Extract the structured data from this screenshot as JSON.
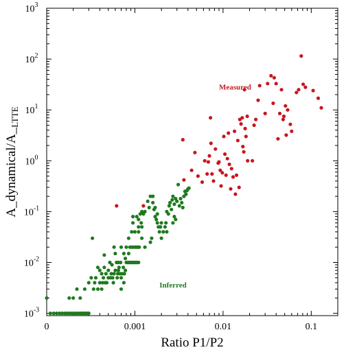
{
  "chart_data": {
    "type": "scatter",
    "title": "",
    "xlabel": "Ratio P1/P2",
    "ylabel": "A_dynamical/A_LTTE",
    "ylabel_main": "A_dynamical/A_",
    "ylabel_sub": "LTTE",
    "x_scale": "log",
    "y_scale": "log",
    "xlim": [
      0.0001,
      0.2
    ],
    "ylim": [
      0.0009,
      1000
    ],
    "x_ticks": [
      {
        "value": 0.0001,
        "label": "0"
      },
      {
        "value": 0.001,
        "label": "0.001"
      },
      {
        "value": 0.01,
        "label": "0.01"
      },
      {
        "value": 0.1,
        "label": "0.1"
      }
    ],
    "y_ticks": [
      {
        "value": 0.001,
        "base": "10",
        "exp": "-3"
      },
      {
        "value": 0.01,
        "base": "10",
        "exp": "-2"
      },
      {
        "value": 0.1,
        "base": "10",
        "exp": "-1"
      },
      {
        "value": 1,
        "base": "10",
        "exp": "0"
      },
      {
        "value": 10,
        "base": "10",
        "exp": "1"
      },
      {
        "value": 100,
        "base": "10",
        "exp": "2"
      },
      {
        "value": 1000,
        "base": "10",
        "exp": "3"
      }
    ],
    "grid": false,
    "annotations": [
      {
        "text": "Measured",
        "x": 0.009,
        "y": 25,
        "color": "#c8161e"
      },
      {
        "text": "Inferred",
        "x": 0.0019,
        "y": 0.0032,
        "color": "#1f7a1f"
      }
    ],
    "series": [
      {
        "color": "#c8161e",
        "points": [
          [
            0.00062,
            0.13
          ],
          [
            0.00125,
            0.13
          ],
          [
            0.0035,
            2.6
          ],
          [
            0.0036,
            0.42
          ],
          [
            0.0044,
            0.65
          ],
          [
            0.0048,
            1.45
          ],
          [
            0.0052,
            0.5
          ],
          [
            0.0058,
            0.38
          ],
          [
            0.0062,
            1.0
          ],
          [
            0.0066,
            0.55
          ],
          [
            0.0068,
            0.95
          ],
          [
            0.007,
            1.25
          ],
          [
            0.0072,
            7.0
          ],
          [
            0.0073,
            2.2
          ],
          [
            0.0075,
            0.55
          ],
          [
            0.0078,
            0.4
          ],
          [
            0.0082,
            1.7
          ],
          [
            0.0088,
            0.9
          ],
          [
            0.009,
            0.95
          ],
          [
            0.0093,
            0.65
          ],
          [
            0.0095,
            0.32
          ],
          [
            0.0098,
            0.58
          ],
          [
            0.0102,
            3.0
          ],
          [
            0.0105,
            1.35
          ],
          [
            0.0108,
            0.52
          ],
          [
            0.0112,
            1.1
          ],
          [
            0.0115,
            3.5
          ],
          [
            0.0118,
            0.85
          ],
          [
            0.0122,
            0.28
          ],
          [
            0.0125,
            0.7
          ],
          [
            0.013,
            0.48
          ],
          [
            0.0135,
            3.8
          ],
          [
            0.0138,
            0.22
          ],
          [
            0.0142,
            0.52
          ],
          [
            0.0147,
            2.5
          ],
          [
            0.0152,
            0.3
          ],
          [
            0.0155,
            6.5
          ],
          [
            0.016,
            5.3
          ],
          [
            0.0165,
            7.0
          ],
          [
            0.0168,
            1.9
          ],
          [
            0.0172,
            1.5
          ],
          [
            0.0175,
            25
          ],
          [
            0.0178,
            4.3
          ],
          [
            0.0182,
            3.0
          ],
          [
            0.0188,
            7.5
          ],
          [
            0.019,
            1.0
          ],
          [
            0.0215,
            1.0
          ],
          [
            0.0225,
            5.0
          ],
          [
            0.0235,
            6.5
          ],
          [
            0.025,
            15.5
          ],
          [
            0.026,
            30
          ],
          [
            0.03,
            8.5
          ],
          [
            0.032,
            33
          ],
          [
            0.035,
            47
          ],
          [
            0.037,
            13.5
          ],
          [
            0.038,
            43
          ],
          [
            0.04,
            33
          ],
          [
            0.042,
            2.7
          ],
          [
            0.044,
            8.5
          ],
          [
            0.046,
            25
          ],
          [
            0.048,
            6.5
          ],
          [
            0.049,
            7.5
          ],
          [
            0.051,
            12
          ],
          [
            0.052,
            3.2
          ],
          [
            0.054,
            10
          ],
          [
            0.058,
            5.2
          ],
          [
            0.06,
            3.8
          ],
          [
            0.068,
            22
          ],
          [
            0.072,
            25
          ],
          [
            0.077,
            115
          ],
          [
            0.081,
            32
          ],
          [
            0.086,
            28
          ],
          [
            0.105,
            24
          ],
          [
            0.12,
            17
          ],
          [
            0.13,
            11
          ]
        ]
      },
      {
        "color": "#1f7a1f",
        "points": [
          [
            0.0001,
            0.002
          ],
          [
            0.00011,
            0.001
          ],
          [
            0.00012,
            0.001
          ],
          [
            0.00013,
            0.001
          ],
          [
            0.00014,
            0.001
          ],
          [
            0.00015,
            0.001
          ],
          [
            0.00016,
            0.001
          ],
          [
            0.00017,
            0.001
          ],
          [
            0.00018,
            0.001
          ],
          [
            0.00019,
            0.001
          ],
          [
            0.0002,
            0.001
          ],
          [
            0.00021,
            0.001
          ],
          [
            0.00022,
            0.001
          ],
          [
            0.00023,
            0.001
          ],
          [
            0.00024,
            0.001
          ],
          [
            0.00025,
            0.001
          ],
          [
            0.00026,
            0.001
          ],
          [
            0.00027,
            0.001
          ],
          [
            0.00028,
            0.001
          ],
          [
            0.00029,
            0.001
          ],
          [
            0.0003,
            0.001
          ],
          [
            0.00018,
            0.002
          ],
          [
            0.0002,
            0.002
          ],
          [
            0.00022,
            0.003
          ],
          [
            0.00024,
            0.002
          ],
          [
            0.00027,
            0.003
          ],
          [
            0.0003,
            0.004
          ],
          [
            0.00032,
            0.005
          ],
          [
            0.00033,
            0.03
          ],
          [
            0.00034,
            0.003
          ],
          [
            0.00035,
            0.004
          ],
          [
            0.00036,
            0.005
          ],
          [
            0.00038,
            0.003
          ],
          [
            0.0004,
            0.004
          ],
          [
            0.00042,
            0.003
          ],
          [
            0.00043,
            0.004
          ],
          [
            0.00044,
            0.005
          ],
          [
            0.00045,
            0.014
          ],
          [
            0.00046,
            0.004
          ],
          [
            0.00047,
            0.006
          ],
          [
            0.00048,
            0.004
          ],
          [
            0.0005,
            0.005
          ],
          [
            0.00052,
            0.01
          ],
          [
            0.00053,
            0.005
          ],
          [
            0.00054,
            0.006
          ],
          [
            0.00055,
            0.009
          ],
          [
            0.00056,
            0.005
          ],
          [
            0.00057,
            0.004
          ],
          [
            0.00058,
            0.006
          ],
          [
            0.0006,
            0.007
          ],
          [
            0.00062,
            0.01
          ],
          [
            0.00063,
            0.005
          ],
          [
            0.00064,
            0.006
          ],
          [
            0.00065,
            0.007
          ],
          [
            0.00066,
            0.008
          ],
          [
            0.00068,
            0.006
          ],
          [
            0.00069,
            0.01
          ],
          [
            0.0007,
            0.005
          ],
          [
            0.00072,
            0.006
          ],
          [
            0.00074,
            0.008
          ],
          [
            0.00075,
            0.004
          ],
          [
            0.00076,
            0.006
          ],
          [
            0.00078,
            0.007
          ],
          [
            0.00078,
            0.012
          ],
          [
            0.0008,
            0.01
          ],
          [
            0.00082,
            0.01
          ],
          [
            0.00084,
            0.01
          ],
          [
            0.00086,
            0.01
          ],
          [
            0.00088,
            0.01
          ],
          [
            0.0009,
            0.01
          ],
          [
            0.00092,
            0.01
          ],
          [
            0.00094,
            0.01
          ],
          [
            0.00096,
            0.01
          ],
          [
            0.00098,
            0.01
          ],
          [
            0.001,
            0.01
          ],
          [
            0.00102,
            0.01
          ],
          [
            0.00104,
            0.01
          ],
          [
            0.00106,
            0.01
          ],
          [
            0.00108,
            0.01
          ],
          [
            0.0011,
            0.01
          ],
          [
            0.00085,
            0.015
          ],
          [
            0.00088,
            0.02
          ],
          [
            0.00092,
            0.02
          ],
          [
            0.00096,
            0.02
          ],
          [
            0.001,
            0.02
          ],
          [
            0.00103,
            0.02
          ],
          [
            0.00106,
            0.02
          ],
          [
            0.00109,
            0.02
          ],
          [
            0.00112,
            0.02
          ],
          [
            0.00092,
            0.04
          ],
          [
            0.001,
            0.04
          ],
          [
            0.0011,
            0.04
          ],
          [
            0.0012,
            0.05
          ],
          [
            0.00118,
            0.06
          ],
          [
            0.00095,
            0.06
          ],
          [
            0.00105,
            0.08
          ],
          [
            0.0011,
            0.07
          ],
          [
            0.00115,
            0.09
          ],
          [
            0.0012,
            0.1
          ],
          [
            0.00125,
            0.09
          ],
          [
            0.0013,
            0.1
          ],
          [
            0.0014,
            0.16
          ],
          [
            0.00145,
            0.12
          ],
          [
            0.0015,
            0.2
          ],
          [
            0.0016,
            0.15
          ],
          [
            0.00165,
            0.11
          ],
          [
            0.0017,
            0.08
          ],
          [
            0.00175,
            0.07
          ],
          [
            0.0018,
            0.06
          ],
          [
            0.00185,
            0.05
          ],
          [
            0.0019,
            0.04
          ],
          [
            0.00195,
            0.05
          ],
          [
            0.002,
            0.03
          ],
          [
            0.0021,
            0.04
          ],
          [
            0.0022,
            0.05
          ],
          [
            0.00225,
            0.06
          ],
          [
            0.0023,
            0.1
          ],
          [
            0.0024,
            0.09
          ],
          [
            0.00245,
            0.13
          ],
          [
            0.0025,
            0.15
          ],
          [
            0.0026,
            0.11
          ],
          [
            0.00265,
            0.17
          ],
          [
            0.0027,
            0.2
          ],
          [
            0.0028,
            0.14
          ],
          [
            0.0029,
            0.18
          ],
          [
            0.003,
            0.16
          ],
          [
            0.0031,
            0.34
          ],
          [
            0.0032,
            0.13
          ],
          [
            0.0033,
            0.18
          ],
          [
            0.0034,
            0.15
          ],
          [
            0.0035,
            0.12
          ],
          [
            0.0036,
            0.2
          ],
          [
            0.0037,
            0.25
          ],
          [
            0.0038,
            0.22
          ],
          [
            0.0039,
            0.26
          ],
          [
            0.004,
            0.28
          ],
          [
            0.0041,
            0.29
          ],
          [
            0.0027,
            0.06
          ],
          [
            0.0028,
            0.08
          ],
          [
            0.0029,
            0.07
          ],
          [
            0.0023,
            0.04
          ],
          [
            0.002,
            0.06
          ],
          [
            0.0018,
            0.09
          ],
          [
            0.0017,
            0.12
          ],
          [
            0.0016,
            0.2
          ],
          [
            0.00155,
            0.03
          ],
          [
            0.0015,
            0.025
          ],
          [
            0.0013,
            0.02
          ],
          [
            0.0012,
            0.03
          ],
          [
            0.0011,
            0.05
          ],
          [
            0.00095,
            0.08
          ],
          [
            0.00085,
            0.03
          ],
          [
            0.0008,
            0.02
          ],
          [
            0.00075,
            0.015
          ],
          [
            0.0007,
            0.02
          ],
          [
            0.00065,
            0.01
          ],
          [
            0.0006,
            0.015
          ],
          [
            0.00058,
            0.02
          ],
          [
            0.0005,
            0.007
          ],
          [
            0.00045,
            0.008
          ],
          [
            0.00042,
            0.006
          ],
          [
            0.0004,
            0.007
          ],
          [
            0.00038,
            0.008
          ],
          [
            0.0007,
            0.003
          ]
        ]
      }
    ]
  }
}
